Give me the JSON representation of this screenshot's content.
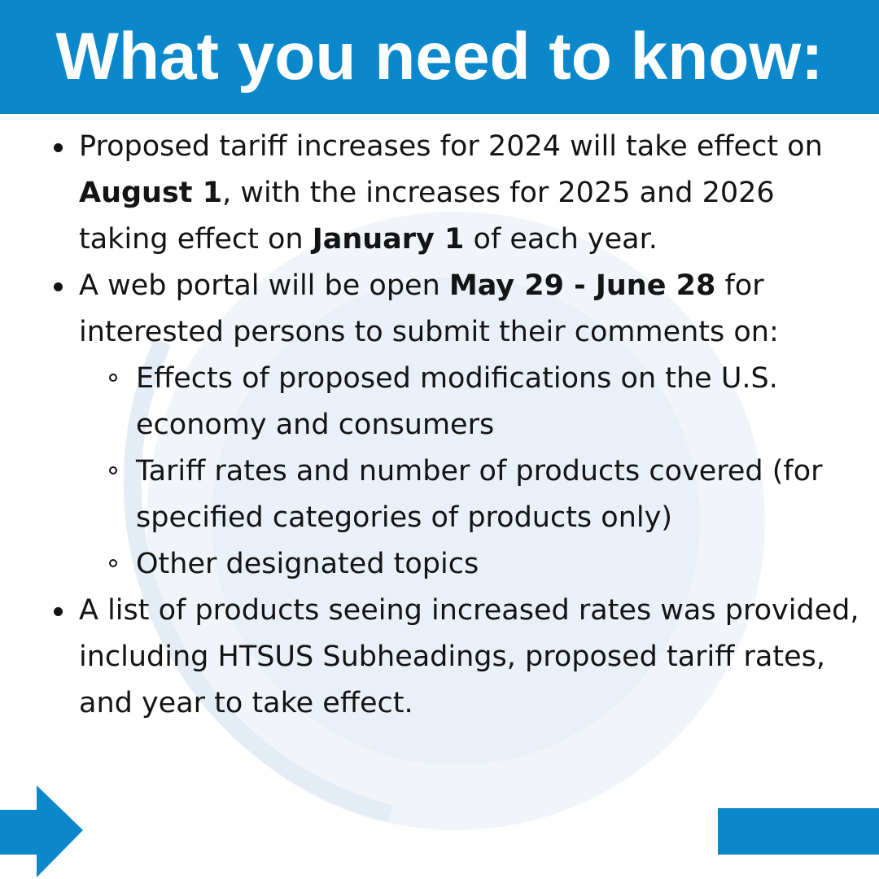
{
  "header": {
    "title": "What you need to know:"
  },
  "bullets": [
    {
      "parts": [
        {
          "text": "Proposed tariff increases for 2024 will take effect on ",
          "bold": false
        },
        {
          "text": "August 1",
          "bold": true
        },
        {
          "text": ", with the increases for 2025 and 2026 taking effect on ",
          "bold": false
        },
        {
          "text": "January 1",
          "bold": true
        },
        {
          "text": " of each year.",
          "bold": false
        }
      ],
      "subitems": []
    },
    {
      "parts": [
        {
          "text": "A web portal will be open ",
          "bold": false
        },
        {
          "text": "May 29 - June 28",
          "bold": true
        },
        {
          "text": " for interested persons to submit their comments on:",
          "bold": false
        }
      ],
      "subitems": [
        "Effects of proposed modifications on the U.S. economy and consumers",
        "Tariff rates and number of products covered (for specified categories of products only)",
        "Other designated topics"
      ]
    },
    {
      "parts": [
        {
          "text": "A list of products seeing increased rates was provided, including HTSUS Subheadings, proposed tariff rates, and year to take effect.",
          "bold": false
        }
      ],
      "subitems": []
    }
  ]
}
